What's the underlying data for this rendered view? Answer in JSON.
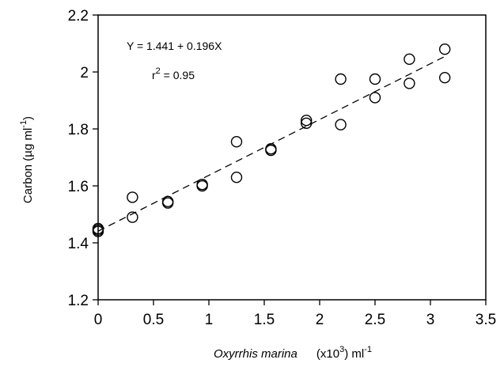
{
  "chart_data": {
    "type": "scatter",
    "xlabel": {
      "italic": "Oxyrrhis marina",
      "prefix": "(x10",
      "exp": "3",
      "suffix": ")  ml",
      "unit_exp": "-1"
    },
    "ylabel": {
      "prefix": "Carbon  (µg  ml",
      "exp": "-1",
      "suffix": ")"
    },
    "xlim": [
      0,
      3.5
    ],
    "ylim": [
      1.2,
      2.2
    ],
    "xticks": [
      0,
      0.5,
      1,
      1.5,
      2,
      2.5,
      3,
      3.5
    ],
    "xtick_labels": [
      "0",
      "0.5",
      "1",
      "1.5",
      "2",
      "2.5",
      "3",
      "3.5"
    ],
    "yticks": [
      1.2,
      1.4,
      1.6,
      1.8,
      2.0,
      2.2
    ],
    "ytick_labels": [
      "1.2",
      "1.4",
      "1.6",
      "1.8",
      "2",
      "2.2"
    ],
    "grid": false,
    "marker": "open-circle",
    "points": [
      {
        "x": 0.0,
        "y": 1.45
      },
      {
        "x": 0.0,
        "y": 1.44
      },
      {
        "x": 0.0,
        "y": 1.445
      },
      {
        "x": 0.31,
        "y": 1.56
      },
      {
        "x": 0.31,
        "y": 1.49
      },
      {
        "x": 0.63,
        "y": 1.54
      },
      {
        "x": 0.63,
        "y": 1.545
      },
      {
        "x": 0.94,
        "y": 1.6
      },
      {
        "x": 0.94,
        "y": 1.605
      },
      {
        "x": 1.25,
        "y": 1.755
      },
      {
        "x": 1.25,
        "y": 1.63
      },
      {
        "x": 1.56,
        "y": 1.725
      },
      {
        "x": 1.56,
        "y": 1.73
      },
      {
        "x": 1.88,
        "y": 1.83
      },
      {
        "x": 1.88,
        "y": 1.82
      },
      {
        "x": 2.19,
        "y": 1.975
      },
      {
        "x": 2.19,
        "y": 1.815
      },
      {
        "x": 2.5,
        "y": 1.975
      },
      {
        "x": 2.5,
        "y": 1.91
      },
      {
        "x": 2.81,
        "y": 2.045
      },
      {
        "x": 2.81,
        "y": 1.96
      },
      {
        "x": 3.13,
        "y": 2.08
      },
      {
        "x": 3.13,
        "y": 1.98
      }
    ],
    "regression": {
      "intercept": 1.441,
      "slope": 0.196,
      "x_range": [
        0,
        3.13
      ],
      "style": "dashed"
    },
    "annotations": {
      "equation": "Y = 1.441 + 0.196X",
      "r_prefix": "r",
      "r_exp": "2",
      "r_value": " = 0.95"
    }
  }
}
